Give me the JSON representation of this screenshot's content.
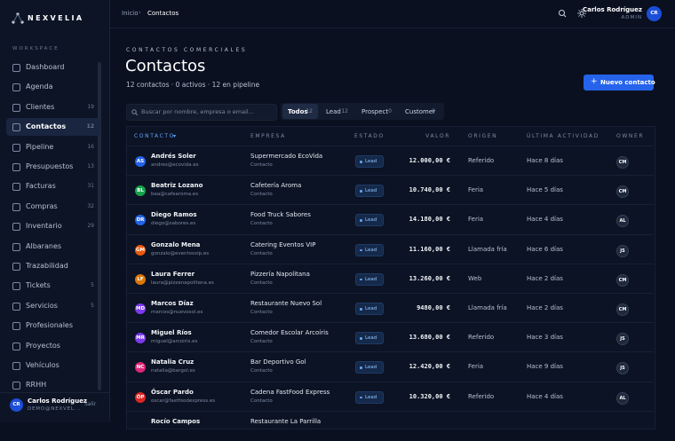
{
  "sidebar": {
    "brand": "NEXVELIA",
    "section": "WORKSPACE",
    "nav": [
      {
        "label": "Dashboard"
      },
      {
        "label": "Agenda"
      },
      {
        "label": "Clientes",
        "count": 19
      },
      {
        "label": "Contactos",
        "count": 12,
        "active": true
      },
      {
        "label": "Pipeline",
        "count": 16
      },
      {
        "label": "Presupuestos",
        "count": 13
      },
      {
        "label": "Facturas",
        "count": 31
      },
      {
        "label": "Compras",
        "count": 32
      },
      {
        "label": "Inventario",
        "count": 29
      },
      {
        "label": "Albaranes"
      },
      {
        "label": "Trazabilidad"
      },
      {
        "label": "Tickets",
        "count": 5
      },
      {
        "label": "Servicios",
        "count": 5
      },
      {
        "label": "Profesionales"
      },
      {
        "label": "Proyectos"
      },
      {
        "label": "Vehículos"
      },
      {
        "label": "RRHH"
      }
    ],
    "user": {
      "initials": "CR",
      "name": "Carlos Rodríguez",
      "email": "DEMO@NEXVEL...",
      "logout": "Salir"
    }
  },
  "topbar": {
    "breadcrumb": [
      "Inicio",
      "Contactos"
    ],
    "user": {
      "name": "Carlos Rodríguez",
      "role": "ADMIN",
      "initials": "CR"
    }
  },
  "header": {
    "eyebrow": "CONTACTOS COMERCIALES",
    "title": "Contactos",
    "summary": "12 contactos · 0 activos · 12 en pipeline",
    "button": "Nuevo contacto"
  },
  "filters": {
    "search_placeholder": "Buscar por nombre, empresa o email...",
    "tabs": [
      {
        "label": "Todos",
        "count": 12,
        "active": true
      },
      {
        "label": "Lead",
        "count": 12
      },
      {
        "label": "Prospect",
        "count": 0
      },
      {
        "label": "Customer",
        "count": 0
      }
    ]
  },
  "table": {
    "columns": [
      "CONTACTO",
      "EMPRESA",
      "ESTADO",
      "VALOR",
      "ORIGEN",
      "ÚLTIMA ACTIVIDAD",
      "OWNER"
    ],
    "rows": [
      {
        "initials": "AS",
        "color": "#2563eb",
        "name": "Andrés Soler",
        "email": "andres@ecovida.es",
        "company": "Supermercado EcoVida",
        "company_type": "Contacto",
        "status": "Lead",
        "value": "12.000,00 €",
        "origin": "Referido",
        "activity": "Hace 8 días",
        "owner": "CM"
      },
      {
        "initials": "BL",
        "color": "#16a34a",
        "name": "Beatriz Lozano",
        "email": "bea@cafearoma.es",
        "company": "Cafetería Aroma",
        "company_type": "Contacto",
        "status": "Lead",
        "value": "10.740,00 €",
        "origin": "Feria",
        "activity": "Hace 5 días",
        "owner": "CM"
      },
      {
        "initials": "DR",
        "color": "#2563eb",
        "name": "Diego Ramos",
        "email": "diego@sabores.es",
        "company": "Food Truck Sabores",
        "company_type": "Contacto",
        "status": "Lead",
        "value": "14.180,00 €",
        "origin": "Feria",
        "activity": "Hace 4 días",
        "owner": "AL"
      },
      {
        "initials": "GM",
        "color": "#ea580c",
        "name": "Gonzalo Mena",
        "email": "gonzalo@eventosvip.es",
        "company": "Catering Eventos VIP",
        "company_type": "Contacto",
        "status": "Lead",
        "value": "11.160,00 €",
        "origin": "Llamada fría",
        "activity": "Hace 6 días",
        "owner": "JS"
      },
      {
        "initials": "LF",
        "color": "#d97706",
        "name": "Laura Ferrer",
        "email": "laura@pizzanapolitana.es",
        "company": "Pizzería Napolitana",
        "company_type": "Contacto",
        "status": "Lead",
        "value": "13.260,00 €",
        "origin": "Web",
        "activity": "Hace 2 días",
        "owner": "CM"
      },
      {
        "initials": "MD",
        "color": "#7c3aed",
        "name": "Marcos Díaz",
        "email": "marcos@nuevosol.es",
        "company": "Restaurante Nuevo Sol",
        "company_type": "Contacto",
        "status": "Lead",
        "value": "9480,00 €",
        "origin": "Llamada fría",
        "activity": "Hace 2 días",
        "owner": "CM"
      },
      {
        "initials": "MR",
        "color": "#7c3aed",
        "name": "Miguel Ríos",
        "email": "miguel@arcoiris.es",
        "company": "Comedor Escolar Arcoíris",
        "company_type": "Contacto",
        "status": "Lead",
        "value": "13.680,00 €",
        "origin": "Referido",
        "activity": "Hace 3 días",
        "owner": "JS"
      },
      {
        "initials": "NC",
        "color": "#db2777",
        "name": "Natalia Cruz",
        "email": "natalia@bargol.es",
        "company": "Bar Deportivo Gol",
        "company_type": "Contacto",
        "status": "Lead",
        "value": "12.420,00 €",
        "origin": "Feria",
        "activity": "Hace 9 días",
        "owner": "JS"
      },
      {
        "initials": "ÓP",
        "color": "#dc2626",
        "name": "Óscar Pardo",
        "email": "oscar@fastfoodexpress.es",
        "company": "Cadena FastFood Express",
        "company_type": "Contacto",
        "status": "Lead",
        "value": "10.320,00 €",
        "origin": "Referido",
        "activity": "Hace 4 días",
        "owner": "AL"
      },
      {
        "name": "Rocío Campos",
        "company": "Restaurante La Parrilla"
      }
    ]
  }
}
